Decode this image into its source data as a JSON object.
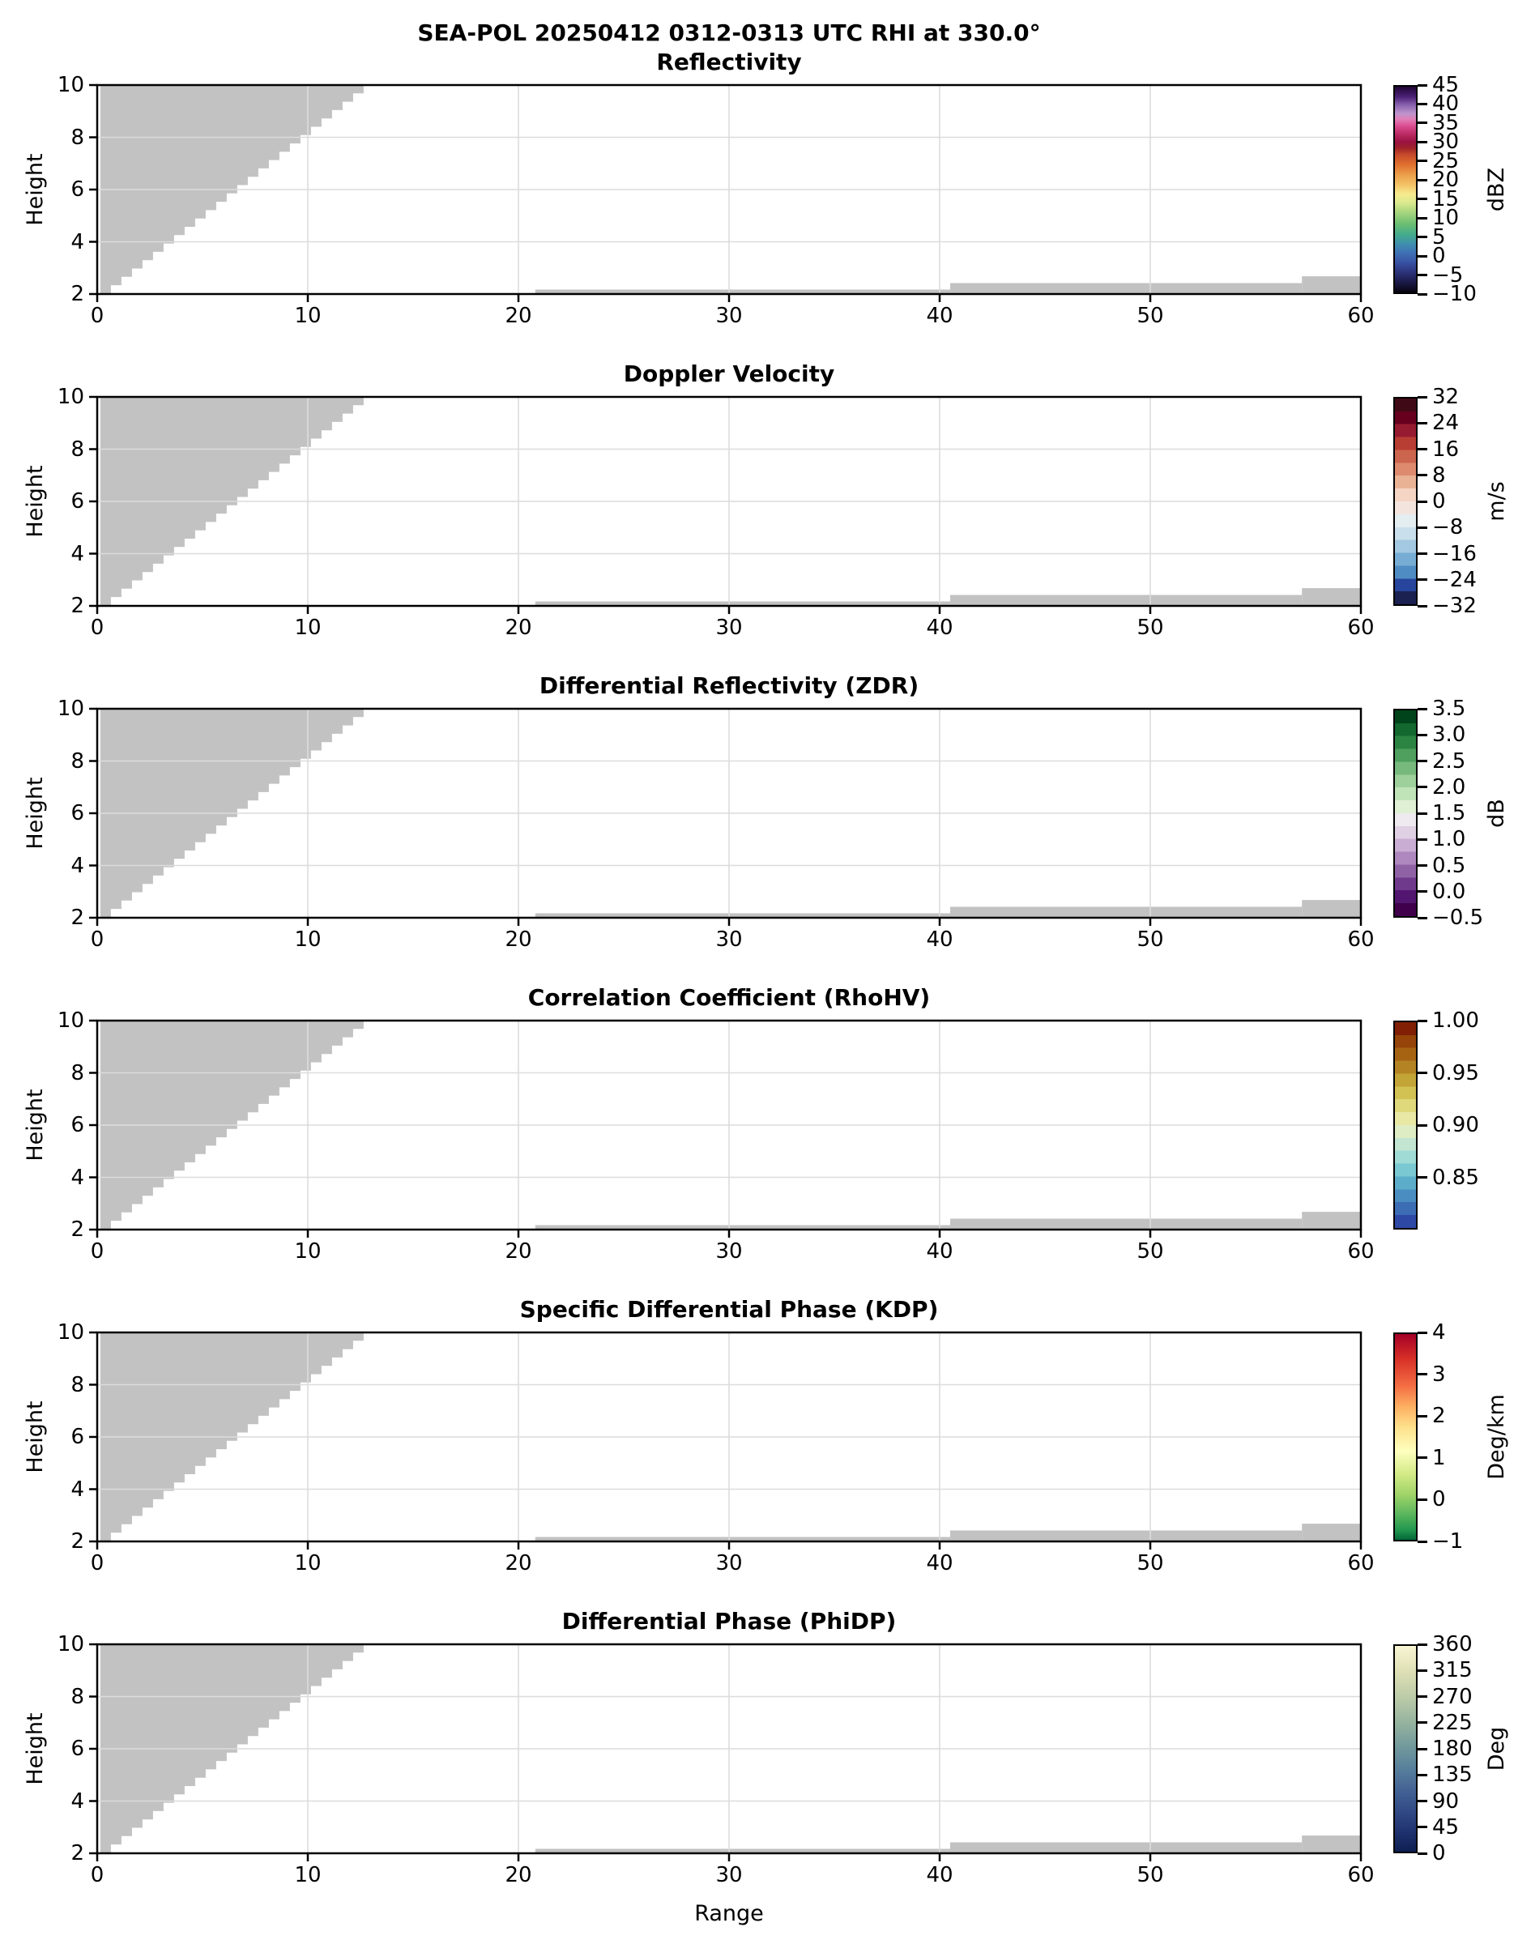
{
  "figure": {
    "title": "SEA-POL 20250412 0312-0313 UTC RHI at 330.0°",
    "xlabel": "Range",
    "ylabel": "Height",
    "background": "#ffffff",
    "mask_color": "#c2c2c2",
    "grid_color": "#dcdcdc",
    "spine_color": "#000000"
  },
  "chart_data": {
    "type": "heatmap",
    "description": "Six stacked RHI radar cross-section panels sharing identical axes; only gray no-data mask regions are visible (no colored echo in view), plus per-panel colorbars.",
    "x": {
      "label": "Range",
      "lim": [
        0,
        60
      ],
      "ticks": [
        "0",
        "10",
        "20",
        "30",
        "40",
        "50",
        "60"
      ],
      "tick_values": [
        0,
        10,
        20,
        30,
        40,
        50,
        60
      ],
      "gridlines": [
        10,
        20,
        30,
        40,
        50
      ]
    },
    "y": {
      "label": "Height",
      "lim": [
        2,
        10
      ],
      "ticks": [
        "2",
        "4",
        "6",
        "8",
        "10"
      ],
      "tick_values": [
        2,
        4,
        6,
        8,
        10
      ],
      "gridlines": [
        4,
        6,
        8
      ]
    },
    "gray_mask": {
      "staircase_triangle": {
        "comment": "blocked cone above radar: gray fills from stepped lower edge up to height 10, ranges 0-12.8",
        "x_start": 0.15,
        "x_end": 12.8,
        "h_start": 2.02,
        "h_end": 10.0,
        "step_width": 0.5
      },
      "bottom_strips": [
        {
          "x0": 20.8,
          "x1": 40.5,
          "y0": 2.0,
          "y1": 2.17
        },
        {
          "x0": 40.5,
          "x1": 57.2,
          "y0": 2.0,
          "y1": 2.42
        },
        {
          "x0": 57.2,
          "x1": 60.0,
          "y0": 2.0,
          "y1": 2.68
        }
      ]
    },
    "panels": [
      {
        "title": "Reflectivity",
        "colorbar": {
          "unit": "dBZ",
          "vmin": -10,
          "vmax": 45,
          "style": "continuous",
          "ticks": [
            {
              "v": 45,
              "label": "45"
            },
            {
              "v": 40,
              "label": "40"
            },
            {
              "v": 35,
              "label": "35"
            },
            {
              "v": 30,
              "label": "30"
            },
            {
              "v": 25,
              "label": "25"
            },
            {
              "v": 20,
              "label": "20"
            },
            {
              "v": 15,
              "label": "15"
            },
            {
              "v": 10,
              "label": "10"
            },
            {
              "v": 5,
              "label": "5"
            },
            {
              "v": 0,
              "label": "0"
            },
            {
              "v": -5,
              "label": "−5"
            },
            {
              "v": -10,
              "label": "−10"
            }
          ],
          "stops": [
            [
              0,
              "#200433"
            ],
            [
              5,
              "#4b2277"
            ],
            [
              9,
              "#8a63b0"
            ],
            [
              13,
              "#bd94cc"
            ],
            [
              16,
              "#e27cb6"
            ],
            [
              19,
              "#db4f92"
            ],
            [
              23,
              "#bb2a64"
            ],
            [
              27,
              "#9a1140"
            ],
            [
              30,
              "#a02428"
            ],
            [
              33,
              "#c64a2b"
            ],
            [
              38,
              "#e0712f"
            ],
            [
              43,
              "#eda04b"
            ],
            [
              48,
              "#f3c569"
            ],
            [
              52,
              "#f7e98e"
            ],
            [
              56,
              "#dfeb8f"
            ],
            [
              61,
              "#a8d67e"
            ],
            [
              67,
              "#69bd72"
            ],
            [
              72,
              "#43ab8d"
            ],
            [
              76,
              "#3f92ab"
            ],
            [
              80,
              "#3f76b6"
            ],
            [
              85,
              "#3a55a6"
            ],
            [
              89,
              "#303a85"
            ],
            [
              94,
              "#1f1e53"
            ],
            [
              100,
              "#060410"
            ]
          ]
        }
      },
      {
        "title": "Doppler Velocity",
        "colorbar": {
          "unit": "m/s",
          "vmin": -32,
          "vmax": 32,
          "style": "discrete",
          "ticks": [
            {
              "v": 32,
              "label": "32"
            },
            {
              "v": 24,
              "label": "24"
            },
            {
              "v": 16,
              "label": "16"
            },
            {
              "v": 8,
              "label": "8"
            },
            {
              "v": 0,
              "label": "0"
            },
            {
              "v": -8,
              "label": "−8"
            },
            {
              "v": -16,
              "label": "−16"
            },
            {
              "v": -24,
              "label": "−24"
            },
            {
              "v": -32,
              "label": "−32"
            }
          ],
          "colors": [
            "#3f0a15",
            "#67001f",
            "#971b30",
            "#b83d33",
            "#cc654e",
            "#dd8a6e",
            "#eab295",
            "#f5d5c4",
            "#f3e5de",
            "#e4edf0",
            "#c9dfeb",
            "#a3c8e1",
            "#77add4",
            "#4f8cc3",
            "#27459c",
            "#1b2150"
          ]
        }
      },
      {
        "title": "Differential Reflectivity (ZDR)",
        "colorbar": {
          "unit": "dB",
          "vmin": -0.5,
          "vmax": 3.5,
          "style": "discrete",
          "ticks": [
            {
              "v": 3.5,
              "label": "3.5"
            },
            {
              "v": 3.0,
              "label": "3.0"
            },
            {
              "v": 2.5,
              "label": "2.5"
            },
            {
              "v": 2.0,
              "label": "2.0"
            },
            {
              "v": 1.5,
              "label": "1.5"
            },
            {
              "v": 1.0,
              "label": "1.0"
            },
            {
              "v": 0.5,
              "label": "0.5"
            },
            {
              "v": 0.0,
              "label": "0.0"
            },
            {
              "v": -0.5,
              "label": "−0.5"
            }
          ],
          "colors": [
            "#00441b",
            "#12682e",
            "#2c8443",
            "#4f9f5e",
            "#77b97d",
            "#9ed09c",
            "#c1e3b8",
            "#dff0d5",
            "#eeeaef",
            "#e0d0e4",
            "#c9add2",
            "#ad87bd",
            "#8f62a6",
            "#6f3a8c",
            "#521670",
            "#40004b"
          ]
        }
      },
      {
        "title": "Correlation Coefficient (RhoHV)",
        "colorbar": {
          "unit": "",
          "vmin": 0.8,
          "vmax": 1.0,
          "style": "discrete",
          "ticks": [
            {
              "v": 1.0,
              "label": "1.00"
            },
            {
              "v": 0.95,
              "label": "0.95"
            },
            {
              "v": 0.9,
              "label": "0.90"
            },
            {
              "v": 0.85,
              "label": "0.85"
            }
          ],
          "colors": [
            "#801f04",
            "#964409",
            "#a66413",
            "#b48424",
            "#c3a436",
            "#d2c254",
            "#e0d97c",
            "#e9e8a4",
            "#dfedc4",
            "#c2e6d2",
            "#a0dbd6",
            "#79c8d2",
            "#5cadca",
            "#4a8ec1",
            "#3c6cb4",
            "#2e48a5"
          ]
        }
      },
      {
        "title": "Specific Differential Phase (KDP)",
        "colorbar": {
          "unit": "Deg/km",
          "vmin": -1,
          "vmax": 4,
          "style": "continuous",
          "ticks": [
            {
              "v": 4,
              "label": "4"
            },
            {
              "v": 3,
              "label": "3"
            },
            {
              "v": 2,
              "label": "2"
            },
            {
              "v": 1,
              "label": "1"
            },
            {
              "v": 0,
              "label": "0"
            },
            {
              "v": -1,
              "label": "−1"
            }
          ],
          "stops": [
            [
              0,
              "#a50026"
            ],
            [
              12,
              "#d73027"
            ],
            [
              25,
              "#f46d43"
            ],
            [
              35,
              "#fdae61"
            ],
            [
              45,
              "#fee08b"
            ],
            [
              57,
              "#feffbe"
            ],
            [
              68,
              "#d3ea87"
            ],
            [
              78,
              "#a0d468"
            ],
            [
              87,
              "#5eb85e"
            ],
            [
              95,
              "#23984f"
            ],
            [
              100,
              "#006837"
            ]
          ]
        }
      },
      {
        "title": "Differential Phase (PhiDP)",
        "colorbar": {
          "unit": "Deg",
          "vmin": 0,
          "vmax": 360,
          "style": "continuous",
          "ticks": [
            {
              "v": 360,
              "label": "360"
            },
            {
              "v": 315,
              "label": "315"
            },
            {
              "v": 270,
              "label": "270"
            },
            {
              "v": 225,
              "label": "225"
            },
            {
              "v": 180,
              "label": "180"
            },
            {
              "v": 135,
              "label": "135"
            },
            {
              "v": 90,
              "label": "90"
            },
            {
              "v": 45,
              "label": "45"
            },
            {
              "v": 0,
              "label": "0"
            }
          ],
          "stops": [
            [
              0,
              "#f8f6d4"
            ],
            [
              12,
              "#e0e0b6"
            ],
            [
              25,
              "#bccba8"
            ],
            [
              38,
              "#93b29e"
            ],
            [
              50,
              "#6f979c"
            ],
            [
              60,
              "#577e9b"
            ],
            [
              70,
              "#446395"
            ],
            [
              80,
              "#324b86"
            ],
            [
              90,
              "#203370"
            ],
            [
              100,
              "#0d1f52"
            ]
          ]
        }
      }
    ]
  }
}
